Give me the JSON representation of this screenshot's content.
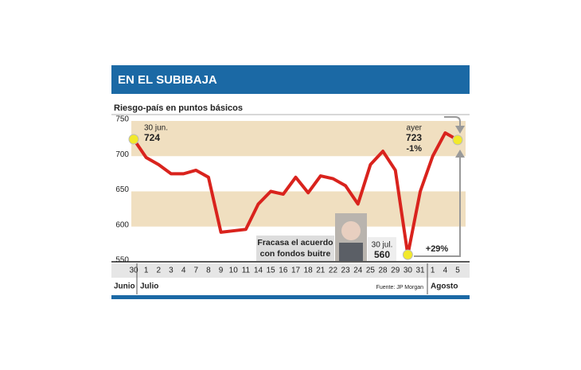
{
  "chart_data": {
    "type": "line",
    "title": "EN EL SUBIBAJA",
    "subtitle": "Riesgo-país en puntos básicos",
    "categories": [
      "30",
      "1",
      "2",
      "3",
      "4",
      "7",
      "8",
      "9",
      "10",
      "11",
      "14",
      "15",
      "16",
      "17",
      "18",
      "21",
      "22",
      "23",
      "24",
      "25",
      "28",
      "29",
      "30",
      "31",
      "1",
      "4",
      "5"
    ],
    "values": [
      724,
      698,
      688,
      675,
      675,
      680,
      670,
      592,
      594,
      596,
      632,
      650,
      646,
      670,
      648,
      672,
      668,
      658,
      632,
      688,
      707,
      680,
      560,
      650,
      700,
      733,
      723
    ],
    "color": "#d9231d",
    "ylim": [
      550,
      750
    ],
    "yticks": [
      550,
      600,
      650,
      700,
      750
    ],
    "months": [
      "Junio",
      "Julio",
      "Agosto"
    ],
    "source": "Fuente: JP Morgan",
    "annotations": {
      "start_date": "30 jun.",
      "start_value": "724",
      "end_date": "ayer",
      "end_value": "723",
      "end_change": "-1%",
      "low_date": "30 jul.",
      "low_value": "560",
      "low_note": [
        "Fracasa el acuerdo",
        "con fondos buitre"
      ],
      "rise": "+29%"
    }
  }
}
